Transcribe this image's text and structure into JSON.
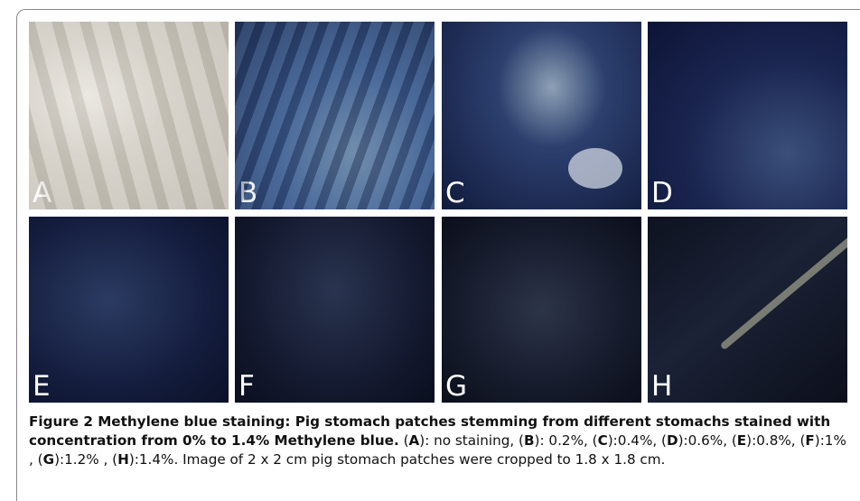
{
  "figure": {
    "panels": [
      {
        "label": "A"
      },
      {
        "label": "B"
      },
      {
        "label": "C"
      },
      {
        "label": "D"
      },
      {
        "label": "E"
      },
      {
        "label": "F"
      },
      {
        "label": "G"
      },
      {
        "label": "H"
      }
    ],
    "caption": {
      "title": "Figure 2 Methylene blue staining: Pig stomach patches stemming from different stomachs stained with concentration from 0% to 1.4% Methylene blue.",
      "body": [
        "(",
        "A",
        "): no staining, (",
        "B",
        "): 0.2%, (",
        "C",
        "):0.4%, (",
        "D",
        "):0.6%, (",
        "E",
        "):0.8%, (",
        "F",
        "):1% , (",
        "G",
        "):1.2% , (",
        "H",
        "):1.4%. Image of 2 x 2 cm pig stomach patches were cropped to 1.8 x 1.8 cm."
      ]
    }
  }
}
